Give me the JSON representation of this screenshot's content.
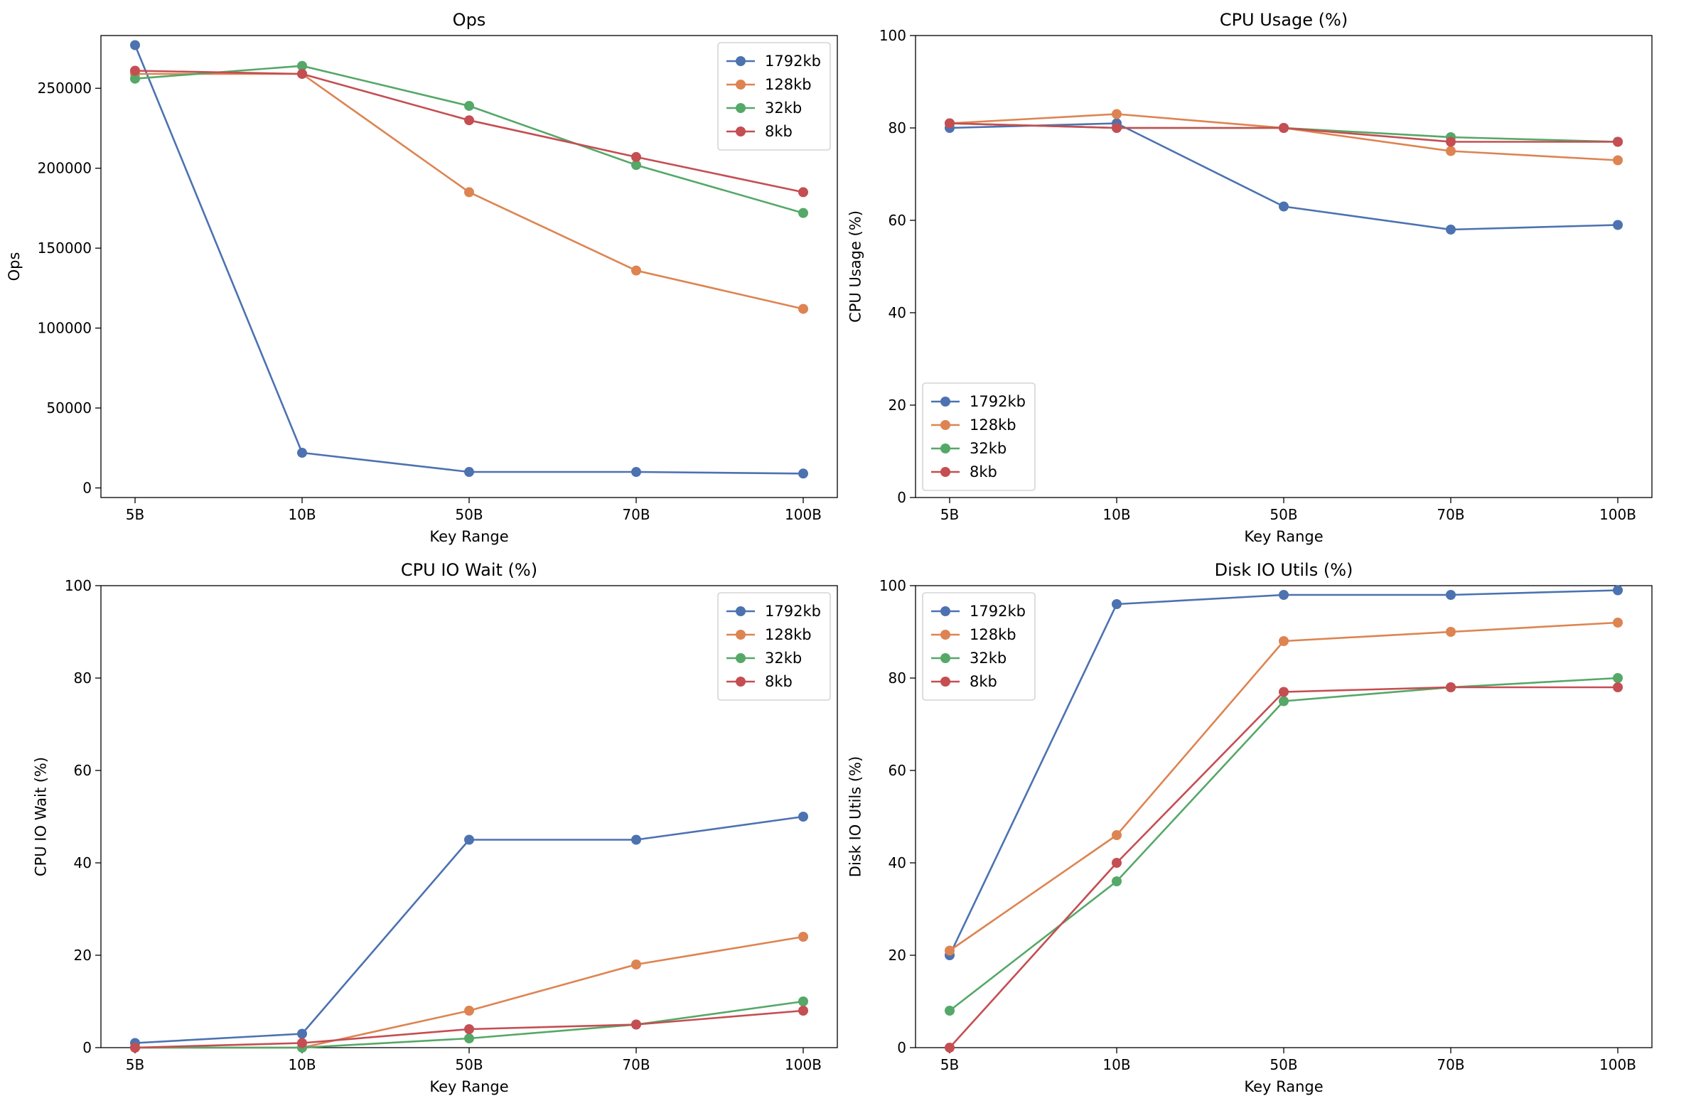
{
  "chart_data": [
    {
      "type": "line",
      "title": "Ops",
      "xlabel": "Key Range",
      "ylabel": "Ops",
      "categories": [
        "5B",
        "10B",
        "50B",
        "70B",
        "100B"
      ],
      "ylim": [
        -6000,
        283000
      ],
      "yticks": [
        0,
        50000,
        100000,
        150000,
        200000,
        250000
      ],
      "legend": "top-right",
      "grid": false,
      "series": [
        {
          "name": "1792kb",
          "color": "#4c72b0",
          "values": [
            277000,
            22000,
            10000,
            10000,
            9000
          ]
        },
        {
          "name": "128kb",
          "color": "#dd8452",
          "values": [
            259000,
            259000,
            185000,
            136000,
            112000
          ]
        },
        {
          "name": "32kb",
          "color": "#55a868",
          "values": [
            256000,
            264000,
            239000,
            202000,
            172000
          ]
        },
        {
          "name": "8kb",
          "color": "#c44e52",
          "values": [
            261000,
            259000,
            230000,
            207000,
            185000
          ]
        }
      ]
    },
    {
      "type": "line",
      "title": "CPU Usage (%)",
      "xlabel": "Key Range",
      "ylabel": "CPU Usage (%)",
      "categories": [
        "5B",
        "10B",
        "50B",
        "70B",
        "100B"
      ],
      "ylim": [
        0,
        100
      ],
      "yticks": [
        0,
        20,
        40,
        60,
        80,
        100
      ],
      "legend": "bottom-left",
      "grid": false,
      "series": [
        {
          "name": "1792kb",
          "color": "#4c72b0",
          "values": [
            80,
            81,
            63,
            58,
            59
          ]
        },
        {
          "name": "128kb",
          "color": "#dd8452",
          "values": [
            81,
            83,
            80,
            75,
            73
          ]
        },
        {
          "name": "32kb",
          "color": "#55a868",
          "values": [
            81,
            80,
            80,
            78,
            77
          ]
        },
        {
          "name": "8kb",
          "color": "#c44e52",
          "values": [
            81,
            80,
            80,
            77,
            77
          ]
        }
      ]
    },
    {
      "type": "line",
      "title": "CPU IO Wait (%)",
      "xlabel": "Key Range",
      "ylabel": "CPU IO Wait (%)",
      "categories": [
        "5B",
        "10B",
        "50B",
        "70B",
        "100B"
      ],
      "ylim": [
        0,
        100
      ],
      "yticks": [
        0,
        20,
        40,
        60,
        80,
        100
      ],
      "legend": "top-right",
      "grid": false,
      "series": [
        {
          "name": "1792kb",
          "color": "#4c72b0",
          "values": [
            1,
            3,
            45,
            45,
            50
          ]
        },
        {
          "name": "128kb",
          "color": "#dd8452",
          "values": [
            0,
            0,
            8,
            18,
            24
          ]
        },
        {
          "name": "32kb",
          "color": "#55a868",
          "values": [
            0,
            0,
            2,
            5,
            10
          ]
        },
        {
          "name": "8kb",
          "color": "#c44e52",
          "values": [
            0,
            1,
            4,
            5,
            8
          ]
        }
      ]
    },
    {
      "type": "line",
      "title": "Disk IO Utils (%)",
      "xlabel": "Key Range",
      "ylabel": "Disk IO Utils (%)",
      "categories": [
        "5B",
        "10B",
        "50B",
        "70B",
        "100B"
      ],
      "ylim": [
        0,
        100
      ],
      "yticks": [
        0,
        20,
        40,
        60,
        80,
        100
      ],
      "legend": "top-left",
      "grid": false,
      "series": [
        {
          "name": "1792kb",
          "color": "#4c72b0",
          "values": [
            20,
            96,
            98,
            98,
            99
          ]
        },
        {
          "name": "128kb",
          "color": "#dd8452",
          "values": [
            21,
            46,
            88,
            90,
            92
          ]
        },
        {
          "name": "32kb",
          "color": "#55a868",
          "values": [
            8,
            36,
            75,
            78,
            80
          ]
        },
        {
          "name": "8kb",
          "color": "#c44e52",
          "values": [
            0,
            40,
            77,
            78,
            78
          ]
        }
      ]
    }
  ]
}
